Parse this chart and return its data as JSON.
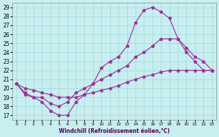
{
  "xlabel": "Windchill (Refroidissement éolien,°C)",
  "bg_color": "#c8eef0",
  "line_color": "#993399",
  "grid_color": "#aadddd",
  "xlim": [
    -0.5,
    23.5
  ],
  "ylim": [
    16.5,
    29.5
  ],
  "xticks": [
    0,
    1,
    2,
    3,
    4,
    5,
    6,
    7,
    8,
    9,
    10,
    11,
    12,
    13,
    14,
    15,
    16,
    17,
    18,
    19,
    20,
    21,
    22,
    23
  ],
  "yticks": [
    17,
    18,
    19,
    20,
    21,
    22,
    23,
    24,
    25,
    26,
    27,
    28,
    29
  ],
  "series1_x": [
    0,
    1,
    2,
    3,
    4,
    5,
    6,
    7,
    8,
    9,
    10,
    11,
    12,
    13,
    14,
    15,
    16,
    17,
    18,
    19,
    20,
    21,
    22,
    23
  ],
  "series1_y": [
    20.5,
    19.3,
    19.0,
    18.5,
    17.5,
    17.0,
    17.0,
    18.5,
    19.3,
    20.5,
    22.3,
    23.0,
    23.5,
    24.7,
    27.3,
    28.7,
    29.0,
    28.5,
    27.8,
    25.5,
    24.0,
    23.0,
    22.0,
    22.0
  ],
  "series2_x": [
    0,
    1,
    2,
    3,
    4,
    5,
    6,
    7,
    8,
    9,
    10,
    11,
    12,
    13,
    14,
    15,
    16,
    17,
    18,
    19,
    20,
    21,
    22,
    23
  ],
  "series2_y": [
    20.5,
    19.5,
    19.0,
    19.0,
    18.3,
    18.0,
    18.5,
    19.5,
    20.0,
    20.5,
    21.0,
    21.5,
    22.0,
    22.5,
    23.5,
    24.0,
    24.7,
    25.5,
    25.5,
    25.5,
    24.5,
    23.5,
    23.0,
    22.0
  ],
  "series3_x": [
    0,
    1,
    2,
    3,
    4,
    5,
    6,
    7,
    8,
    9,
    10,
    11,
    12,
    13,
    14,
    15,
    16,
    17,
    18,
    19,
    20,
    21,
    22,
    23
  ],
  "series3_y": [
    20.5,
    20.0,
    19.8,
    19.5,
    19.3,
    19.0,
    19.0,
    19.0,
    19.3,
    19.5,
    19.8,
    20.0,
    20.3,
    20.7,
    21.0,
    21.3,
    21.5,
    21.8,
    22.0,
    22.0,
    22.0,
    22.0,
    22.0,
    22.0
  ]
}
